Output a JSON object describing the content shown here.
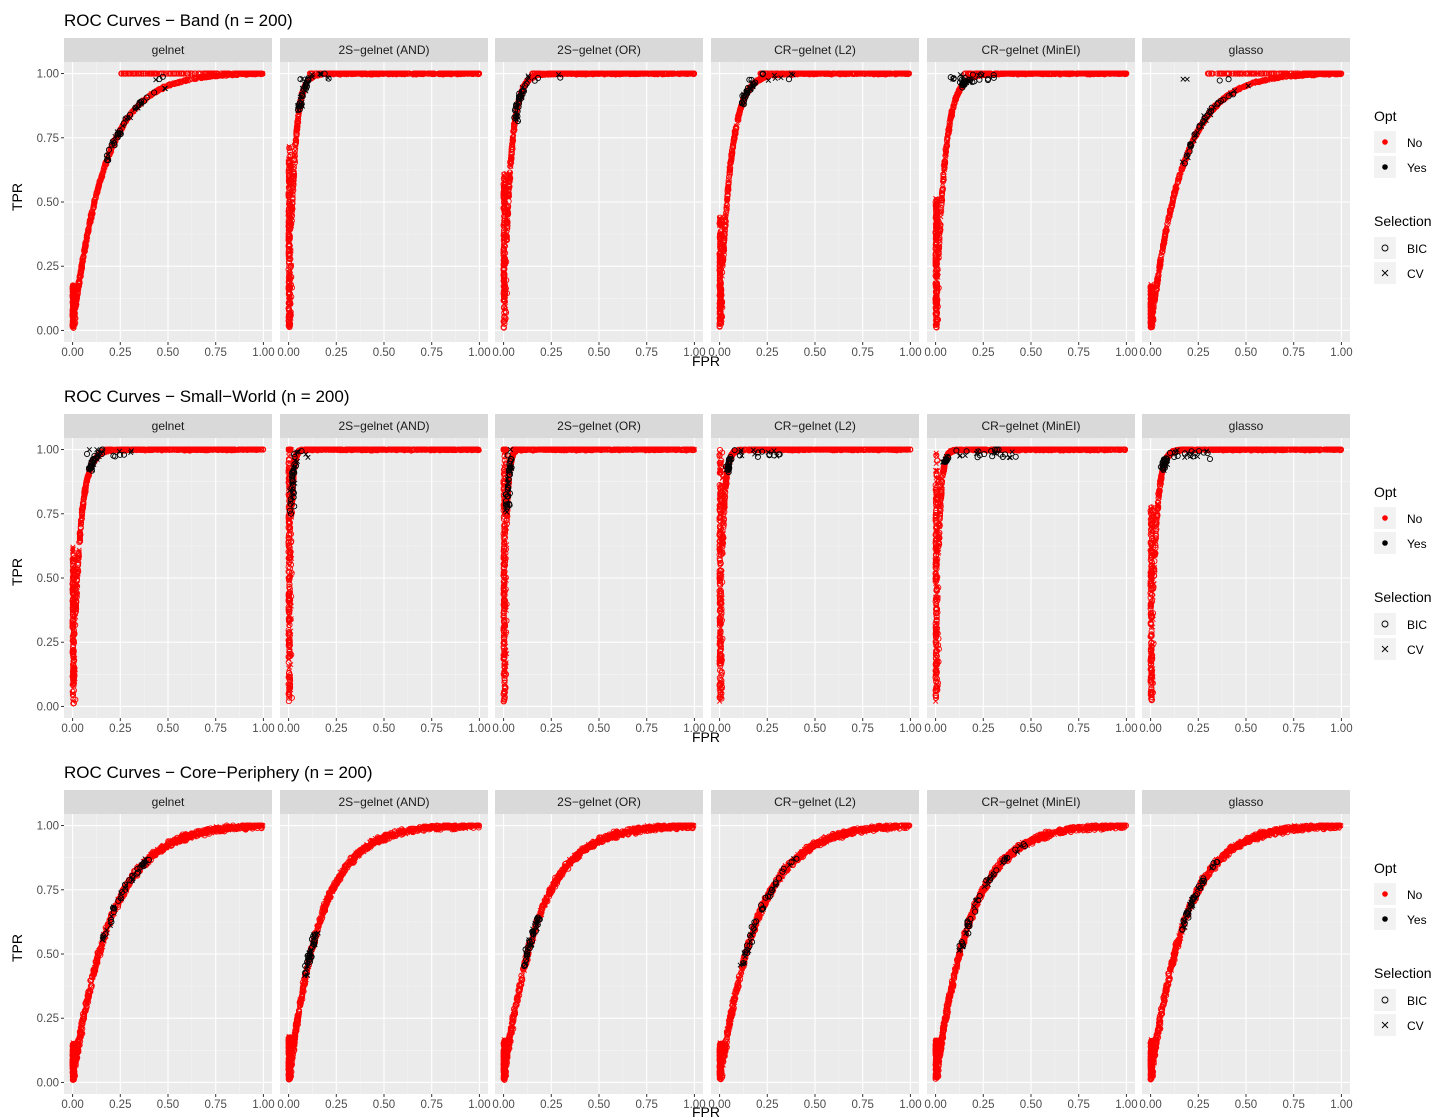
{
  "colors": {
    "no": "#ff0000",
    "yes": "#000000",
    "panel": "#ebebeb",
    "strip": "#d9d9d9"
  },
  "legend": {
    "opt_title": "Opt",
    "opt_items": [
      "No",
      "Yes"
    ],
    "selection_title": "Selection",
    "selection_items": [
      "BIC",
      "CV"
    ]
  },
  "chart_data": [
    {
      "type": "scatter",
      "title": "ROC Curves − Band (n = 200)",
      "xlabel": "FPR",
      "ylabel": "TPR",
      "xlim": [
        0,
        1
      ],
      "ylim": [
        0,
        1
      ],
      "x_ticks": [
        "0.00",
        "0.25",
        "0.50",
        "0.75",
        "1.00"
      ],
      "y_ticks": [
        "0.00",
        "0.25",
        "0.50",
        "0.75",
        "1.00"
      ],
      "grid": true,
      "legend_position": "right",
      "facets": [
        {
          "name": "gelnet",
          "k": 6,
          "sat": 0.28,
          "yopt": [
            0.65,
            1.0
          ],
          "xsat": 0.25
        },
        {
          "name": "2S−gelnet (AND)",
          "k": 35,
          "sat": 0.09,
          "yopt": [
            0.85,
            1.0
          ],
          "xsat": 0.1
        },
        {
          "name": "2S−gelnet (OR)",
          "k": 28,
          "sat": 0.13,
          "yopt": [
            0.82,
            1.0
          ],
          "xsat": 0.15
        },
        {
          "name": "CR−gelnet (L2)",
          "k": 18,
          "sat": 0.22,
          "yopt": [
            0.88,
            1.0
          ],
          "xsat": 0.2
        },
        {
          "name": "CR−gelnet (MinEI)",
          "k": 22,
          "sat": 0.16,
          "yopt": [
            0.95,
            1.0
          ],
          "xsat": 0.15
        },
        {
          "name": "glasso",
          "k": 6,
          "sat": 0.36,
          "yopt": [
            0.65,
            1.0
          ],
          "xsat": 0.3
        }
      ]
    },
    {
      "type": "scatter",
      "title": "ROC Curves − Small−World (n = 200)",
      "xlabel": "FPR",
      "ylabel": "TPR",
      "xlim": [
        0,
        1
      ],
      "ylim": [
        0,
        1
      ],
      "x_ticks": [
        "0.00",
        "0.25",
        "0.50",
        "0.75",
        "1.00"
      ],
      "y_ticks": [
        "0.00",
        "0.25",
        "0.50",
        "0.75",
        "1.00"
      ],
      "grid": true,
      "legend_position": "right",
      "facets": [
        {
          "name": "gelnet",
          "k": 28,
          "sat": 0.15,
          "yopt": [
            0.92,
            1.0
          ],
          "xsat": 0.15
        },
        {
          "name": "2S−gelnet (AND)",
          "k": 90,
          "sat": 0.05,
          "yopt": [
            0.75,
            1.0
          ],
          "xsat": 0.05
        },
        {
          "name": "2S−gelnet (OR)",
          "k": 80,
          "sat": 0.05,
          "yopt": [
            0.75,
            1.0
          ],
          "xsat": 0.04
        },
        {
          "name": "CR−gelnet (L2)",
          "k": 60,
          "sat": 0.1,
          "yopt": [
            0.92,
            1.0
          ],
          "xsat": 0.15
        },
        {
          "name": "CR−gelnet (MinEI)",
          "k": 60,
          "sat": 0.1,
          "yopt": [
            0.95,
            1.0
          ],
          "xsat": 0.2
        },
        {
          "name": "glasso",
          "k": 40,
          "sat": 0.15,
          "yopt": [
            0.92,
            1.0
          ],
          "xsat": 0.15
        }
      ]
    },
    {
      "type": "scatter",
      "title": "ROC Curves − Core−Periphery (n = 200)",
      "xlabel": "FPR",
      "ylabel": "TPR",
      "xlim": [
        0,
        1
      ],
      "ylim": [
        0,
        1
      ],
      "x_ticks": [
        "0.00",
        "0.25",
        "0.50",
        "0.75",
        "1.00"
      ],
      "y_ticks": [
        "0.00",
        "0.25",
        "0.50",
        "0.75",
        "1.00"
      ],
      "grid": true,
      "legend_position": "right",
      "facets": [
        {
          "name": "gelnet",
          "k": 5,
          "sat": 0.95,
          "yopt": [
            0.55,
            0.87
          ],
          "xsat": 0.35
        },
        {
          "name": "2S−gelnet (AND)",
          "k": 6,
          "sat": 0.55,
          "yopt": [
            0.42,
            0.58
          ],
          "xsat": 0.03
        },
        {
          "name": "2S−gelnet (OR)",
          "k": 5.5,
          "sat": 0.95,
          "yopt": [
            0.45,
            0.65
          ],
          "xsat": 0.05
        },
        {
          "name": "CR−gelnet (L2)",
          "k": 5,
          "sat": 0.7,
          "yopt": [
            0.45,
            0.88
          ],
          "xsat": 0.3
        },
        {
          "name": "CR−gelnet (MinEI)",
          "k": 5.5,
          "sat": 0.6,
          "yopt": [
            0.5,
            0.93
          ],
          "xsat": 0.35
        },
        {
          "name": "glasso",
          "k": 5.5,
          "sat": 0.95,
          "yopt": [
            0.58,
            0.86
          ],
          "xsat": 0.35
        }
      ]
    }
  ]
}
